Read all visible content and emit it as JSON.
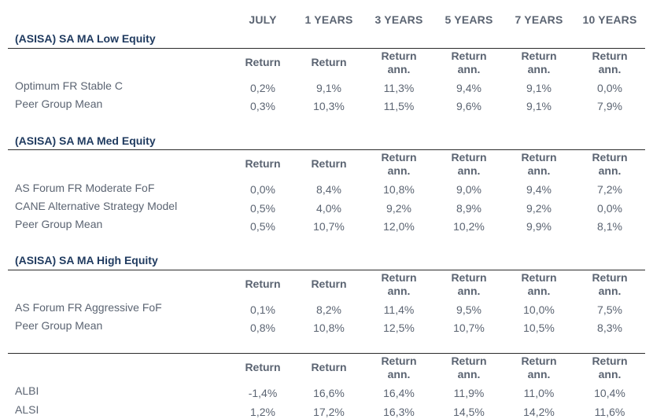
{
  "columns": [
    "JULY",
    "1 YEARS",
    "3 YEARS",
    "5 YEARS",
    "7 YEARS",
    "10 YEARS"
  ],
  "sub_headers": {
    "return": "Return",
    "return_ann_line1": "Return",
    "return_ann_line2": "ann."
  },
  "sections": [
    {
      "title": "(ASISA) SA MA Low Equity",
      "rows": [
        {
          "label": "Optimum FR Stable C",
          "values": [
            "0,2%",
            "9,1%",
            "11,3%",
            "9,4%",
            "9,1%",
            "0,0%"
          ]
        },
        {
          "label": "Peer Group Mean",
          "values": [
            "0,3%",
            "10,3%",
            "11,5%",
            "9,6%",
            "9,1%",
            "7,9%"
          ]
        }
      ]
    },
    {
      "title": "(ASISA) SA MA Med Equity",
      "rows": [
        {
          "label": "AS Forum FR Moderate FoF",
          "values": [
            "0,0%",
            "8,4%",
            "10,8%",
            "9,0%",
            "9,4%",
            "7,2%"
          ]
        },
        {
          "label": "CANE Alternative Strategy Model",
          "values": [
            "0,5%",
            "4,0%",
            "9,2%",
            "8,9%",
            "9,2%",
            "0,0%"
          ]
        },
        {
          "label": "Peer Group Mean",
          "values": [
            "0,5%",
            "10,7%",
            "12,0%",
            "10,2%",
            "9,9%",
            "8,1%"
          ]
        }
      ]
    },
    {
      "title": "(ASISA) SA MA High Equity",
      "rows": [
        {
          "label": "AS Forum FR Aggressive FoF",
          "values": [
            "0,1%",
            "8,2%",
            "11,4%",
            "9,5%",
            "10,0%",
            "7,5%"
          ]
        },
        {
          "label": "Peer Group Mean",
          "values": [
            "0,8%",
            "10,8%",
            "12,5%",
            "10,7%",
            "10,5%",
            "8,3%"
          ]
        }
      ]
    },
    {
      "title": "",
      "rows": [
        {
          "label": "ALBI",
          "values": [
            "-1,4%",
            "16,6%",
            "16,4%",
            "11,9%",
            "11,0%",
            "10,4%"
          ]
        },
        {
          "label": "ALSI",
          "values": [
            "1,2%",
            "17,2%",
            "16,3%",
            "14,5%",
            "14,2%",
            "11,6%"
          ]
        }
      ]
    }
  ]
}
